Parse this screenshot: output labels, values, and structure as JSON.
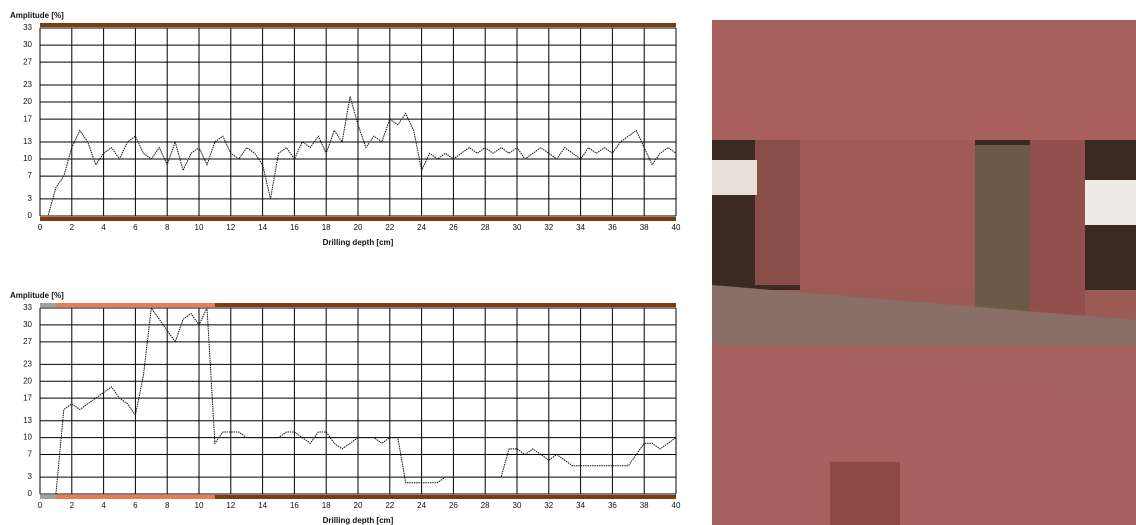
{
  "chart_data": [
    {
      "type": "line",
      "y_label": "Amplitude [%]",
      "x_label": "Drilling depth [cm]",
      "x": [
        0,
        0.5,
        1,
        1.5,
        2,
        2.5,
        3,
        3.5,
        4,
        4.5,
        5,
        5.5,
        6,
        6.5,
        7,
        7.5,
        8,
        8.5,
        9,
        9.5,
        10,
        10.5,
        11,
        11.5,
        12,
        12.5,
        13,
        13.5,
        14,
        14.5,
        15,
        15.5,
        16,
        16.5,
        17,
        17.5,
        18,
        18.5,
        19,
        19.5,
        20,
        20.5,
        21,
        21.5,
        22,
        22.5,
        23,
        23.5,
        24,
        24.5,
        25,
        25.5,
        26,
        26.5,
        27,
        27.5,
        28,
        28.5,
        29,
        29.5,
        30,
        30.5,
        31,
        31.5,
        32,
        32.5,
        33,
        33.5,
        34,
        34.5,
        35,
        35.5,
        36,
        36.5,
        37,
        37.5,
        38,
        38.5,
        39,
        39.5,
        40
      ],
      "series": [
        {
          "color": "#111111",
          "values": [
            0,
            0,
            5,
            7,
            12,
            15,
            13,
            9,
            11,
            12,
            10,
            13,
            14,
            11,
            10,
            12,
            9,
            13,
            8,
            11,
            12,
            9,
            13,
            14,
            11,
            10,
            12,
            11,
            9,
            3,
            11,
            12,
            10,
            13,
            12,
            14,
            11,
            15,
            13,
            21,
            16,
            12,
            14,
            13,
            17,
            16,
            18,
            15,
            8,
            11,
            10,
            11,
            10,
            11,
            12,
            11,
            12,
            11,
            12,
            11,
            12,
            10,
            11,
            12,
            11,
            10,
            12,
            11,
            10,
            12,
            11,
            12,
            11,
            13,
            14,
            15,
            12,
            9,
            11,
            12,
            11
          ]
        }
      ],
      "bands": [
        {
          "start": 0,
          "end": 40,
          "color": "#7a3c10"
        }
      ],
      "xlim": [
        0,
        40
      ],
      "xticks": [
        0,
        2,
        4,
        6,
        8,
        10,
        12,
        14,
        16,
        18,
        20,
        22,
        24,
        26,
        28,
        30,
        32,
        34,
        36,
        38,
        40
      ],
      "ylim": [
        0,
        33
      ],
      "yticks": [
        0,
        3,
        7,
        10,
        13,
        17,
        20,
        23,
        27,
        30,
        33
      ],
      "grid": true
    },
    {
      "type": "line",
      "y_label": "Amplitude [%]",
      "x_label": "Drilling depth [cm]",
      "x": [
        0,
        0.5,
        1,
        1.5,
        2,
        2.5,
        3,
        3.5,
        4,
        4.5,
        5,
        5.5,
        6,
        6.5,
        7,
        7.5,
        8,
        8.5,
        9,
        9.5,
        10,
        10.5,
        11,
        11.5,
        12,
        12.5,
        13,
        13.5,
        14,
        14.5,
        15,
        15.5,
        16,
        16.5,
        17,
        17.5,
        18,
        18.5,
        19,
        19.5,
        20,
        20.5,
        21,
        21.5,
        22,
        22.5,
        23,
        23.5,
        24,
        24.5,
        25,
        25.5,
        26,
        26.5,
        27,
        27.5,
        28,
        28.5,
        29,
        29.5,
        30,
        30.5,
        31,
        31.5,
        32,
        32.5,
        33,
        33.5,
        34,
        34.5,
        35,
        35.5,
        36,
        36.5,
        37,
        37.5,
        38,
        38.5,
        39,
        39.5,
        40
      ],
      "series": [
        {
          "color": "#111111",
          "values": [
            0,
            0,
            0,
            15,
            16,
            15,
            16,
            17,
            18,
            19,
            17,
            16,
            14,
            21,
            33,
            31,
            29,
            27,
            31,
            32,
            30,
            33,
            9,
            11,
            11,
            11,
            10,
            10,
            10,
            10,
            10,
            11,
            11,
            10,
            9,
            11,
            11,
            9,
            8,
            9,
            10,
            10,
            10,
            9,
            10,
            10,
            2,
            2,
            2,
            2,
            2,
            3,
            3,
            3,
            3,
            3,
            3,
            3,
            3,
            8,
            8,
            7,
            8,
            7,
            6,
            7,
            6,
            5,
            5,
            5,
            5,
            5,
            5,
            5,
            5,
            7,
            9,
            9,
            8,
            9,
            10
          ]
        }
      ],
      "bands": [
        {
          "start": 0,
          "end": 1,
          "color": "#a0a0a0"
        },
        {
          "start": 1,
          "end": 11,
          "color": "#f07a50"
        },
        {
          "start": 11,
          "end": 40,
          "color": "#7a3c10"
        }
      ],
      "xlim": [
        0,
        40
      ],
      "xticks": [
        0,
        2,
        4,
        6,
        8,
        10,
        12,
        14,
        16,
        18,
        20,
        22,
        24,
        26,
        28,
        30,
        32,
        34,
        36,
        38,
        40
      ],
      "ylim": [
        0,
        33
      ],
      "yticks": [
        0,
        3,
        7,
        10,
        13,
        17,
        20,
        23,
        27,
        30,
        33
      ],
      "grid": true
    }
  ]
}
